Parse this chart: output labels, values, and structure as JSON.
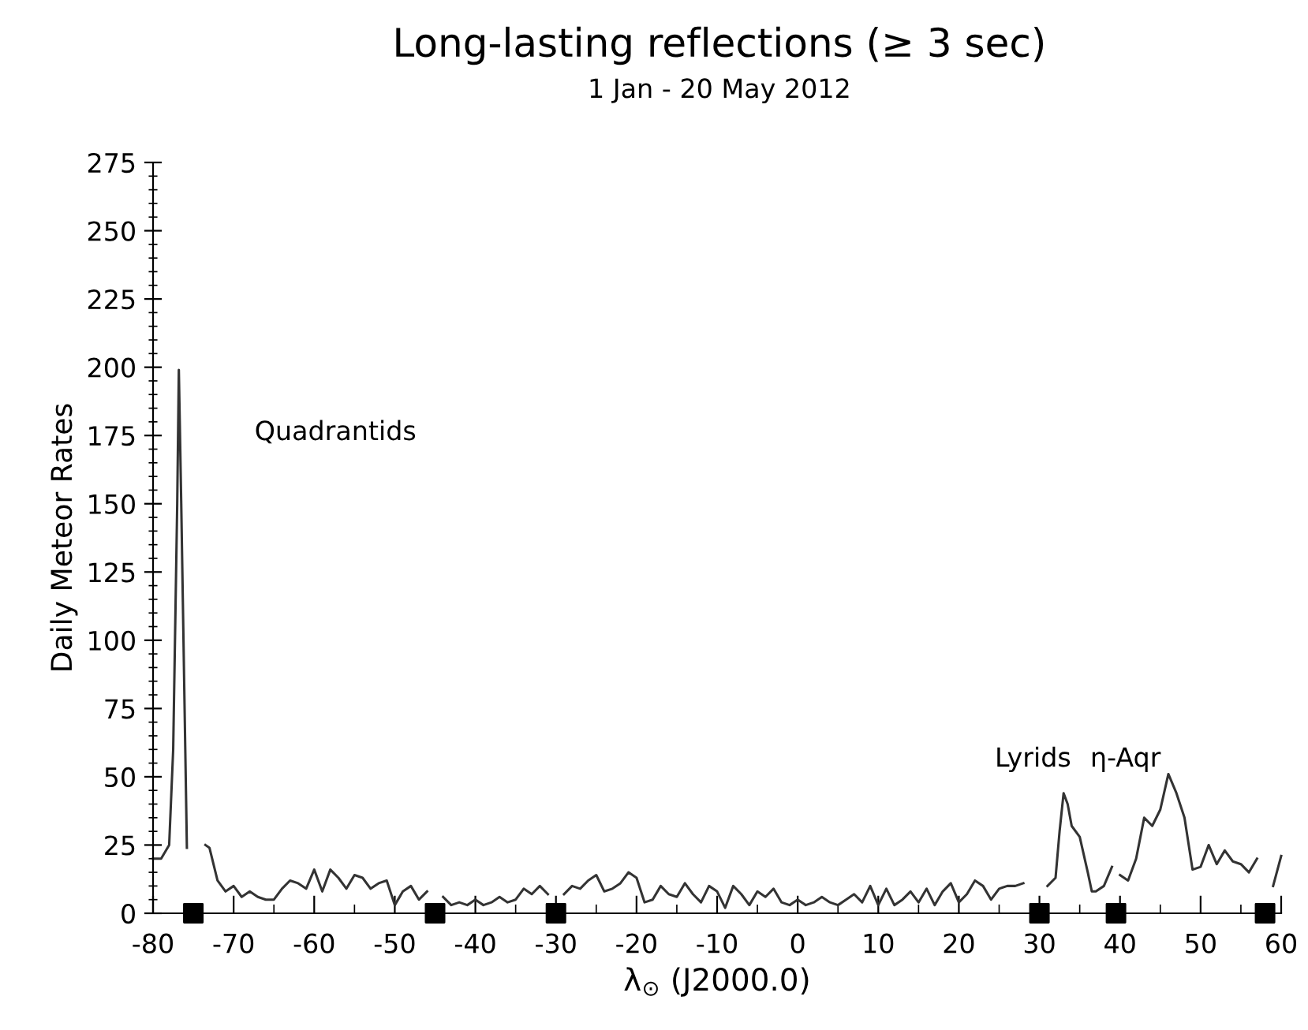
{
  "chart_data": {
    "type": "line",
    "title": "Long-lasting reflections (≥ 3 sec)",
    "subtitle": "1 Jan - 20 May 2012",
    "xlabel": "λ$_{⊙}$ (J2000.0)",
    "ylabel": "Daily Meteor Rates",
    "xlim": [
      -80,
      60
    ],
    "xticks": [
      -80,
      -70,
      -60,
      -50,
      -40,
      -30,
      -20,
      -10,
      0,
      10,
      20,
      30,
      40,
      50,
      60
    ],
    "ylim": [
      0,
      275
    ],
    "yticks": [
      0,
      25,
      50,
      75,
      100,
      125,
      150,
      175,
      200,
      225,
      250,
      275
    ],
    "grid": false,
    "legend": false,
    "series": [
      {
        "color": "#333333",
        "line_style": "solid",
        "marker": "none",
        "x": [
          -80,
          -79,
          -78,
          -77.5,
          -77,
          -76.8,
          -76.5,
          -76,
          -75.8,
          -75,
          -73.5,
          -73,
          -72,
          -71,
          -70,
          -69,
          -68,
          -67,
          -66,
          -65,
          -64,
          -63,
          -62,
          -61,
          -60,
          -59,
          -58,
          -57,
          -56,
          -55,
          -54,
          -53,
          -52,
          -51,
          -50,
          -49,
          -48,
          -47,
          -46,
          -45,
          -44,
          -43,
          -42,
          -41,
          -40,
          -39,
          -38,
          -37,
          -36,
          -35,
          -34,
          -33,
          -32,
          -31,
          -30,
          -29,
          -28,
          -27,
          -26,
          -25,
          -24,
          -23,
          -22,
          -21,
          -20,
          -19,
          -18,
          -17,
          -16,
          -15,
          -14,
          -13,
          -12,
          -11,
          -10,
          -9,
          -8,
          -7,
          -6,
          -5,
          -4,
          -3,
          -2,
          -1,
          0,
          1,
          2,
          3,
          4,
          5,
          6,
          7,
          8,
          9,
          10,
          11,
          12,
          13,
          14,
          15,
          16,
          17,
          18,
          19,
          20,
          21,
          22,
          23,
          24,
          25,
          26,
          27,
          28,
          29.5,
          31,
          32,
          32.5,
          33,
          33.5,
          34,
          35,
          36,
          36.5,
          37,
          38,
          39,
          39.5,
          40,
          41,
          42,
          43,
          44,
          45,
          46,
          47,
          48,
          49,
          50,
          51,
          52,
          53,
          54,
          55,
          56,
          57,
          58,
          59,
          60
        ],
        "values": [
          20,
          20,
          25,
          60,
          150,
          199,
          150,
          60,
          24,
          null,
          25,
          24,
          12,
          8,
          10,
          6,
          8,
          6,
          5,
          5,
          9,
          12,
          11,
          9,
          16,
          8,
          16,
          13,
          9,
          14,
          13,
          9,
          11,
          12,
          3,
          8,
          10,
          5,
          8,
          null,
          6,
          3,
          4,
          3,
          5,
          3,
          4,
          6,
          4,
          5,
          9,
          7,
          10,
          7,
          null,
          7,
          10,
          9,
          12,
          14,
          8,
          9,
          11,
          15,
          13,
          4,
          5,
          10,
          7,
          6,
          11,
          7,
          4,
          10,
          8,
          2,
          10,
          7,
          3,
          8,
          6,
          9,
          4,
          3,
          5,
          3,
          4,
          6,
          4,
          3,
          5,
          7,
          4,
          10,
          3,
          9,
          3,
          5,
          8,
          4,
          9,
          3,
          8,
          11,
          4,
          7,
          12,
          10,
          5,
          9,
          10,
          10,
          11,
          null,
          10,
          13,
          30,
          44,
          40,
          32,
          28,
          15,
          8,
          8,
          10,
          17,
          null,
          14,
          12,
          20,
          35,
          32,
          38,
          51,
          44,
          35,
          16,
          17,
          25,
          18,
          23,
          19,
          18,
          15,
          20,
          null,
          10,
          21
        ]
      },
      {
        "type": "scatter",
        "color": "#000000",
        "marker": "square",
        "x": [
          -75,
          -45,
          -30,
          30,
          39.5,
          58
        ],
        "values": [
          0,
          0,
          0,
          0,
          0,
          0
        ]
      }
    ],
    "annotations": [
      "Quadrantids",
      "Lyrids",
      "η-Aqr"
    ]
  }
}
